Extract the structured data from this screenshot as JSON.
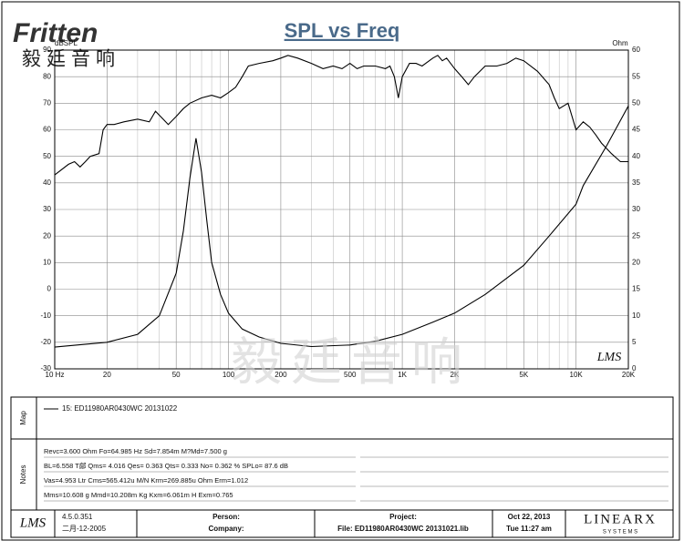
{
  "logo": {
    "brand": "Fritten",
    "chinese": "毅廷音响"
  },
  "watermark": "毅廷音响",
  "chart_data": {
    "type": "line",
    "title": "SPL vs Freq",
    "y_label": "dBSPL",
    "y2_label": "Ohm",
    "x_log": true,
    "grid": true,
    "corner_logo": "LMS",
    "xlim": [
      10,
      20000
    ],
    "xticks": [
      {
        "value": 10,
        "label": "10 Hz"
      },
      20,
      50,
      100,
      200,
      500,
      {
        "value": 1000,
        "label": "1K"
      },
      {
        "value": 2000,
        "label": "2K"
      },
      {
        "value": 5000,
        "label": "5K"
      },
      {
        "value": 10000,
        "label": "10K"
      },
      {
        "value": 20000,
        "label": "20K"
      }
    ],
    "xminor": [
      30,
      40,
      60,
      70,
      80,
      90,
      300,
      400,
      600,
      700,
      800,
      900,
      3000,
      4000,
      6000,
      7000,
      8000,
      9000
    ],
    "ylim": [
      -30,
      90
    ],
    "yticks": [
      -30,
      -20,
      -10,
      0,
      10,
      20,
      30,
      40,
      50,
      60,
      70,
      80,
      90
    ],
    "y2lim": [
      0,
      60
    ],
    "y2ticks": [
      0,
      5,
      10,
      15,
      20,
      25,
      30,
      35,
      40,
      45,
      50,
      55,
      60
    ],
    "series": [
      {
        "name": "15: ED11980AR0430WC  20131022",
        "color": "#000000",
        "x": [
          10,
          12,
          13,
          14,
          15,
          16,
          18,
          19,
          20,
          22,
          25,
          30,
          35,
          38,
          42,
          45,
          50,
          55,
          60,
          70,
          80,
          90,
          100,
          110,
          120,
          130,
          150,
          180,
          200,
          220,
          250,
          300,
          350,
          400,
          450,
          500,
          550,
          600,
          700,
          800,
          850,
          900,
          950,
          1000,
          1100,
          1200,
          1300,
          1500,
          1600,
          1700,
          1800,
          2000,
          2200,
          2400,
          2600,
          3000,
          3500,
          4000,
          4500,
          5000,
          6000,
          7000,
          7500,
          8000,
          9000,
          10000,
          11000,
          12000,
          13000,
          14000,
          16000,
          18000,
          20000
        ],
        "values": [
          43,
          47,
          48,
          46,
          48,
          50,
          51,
          60,
          62,
          62,
          63,
          64,
          63,
          67,
          64,
          62,
          65,
          68,
          70,
          72,
          73,
          72,
          74,
          76,
          80,
          84,
          85,
          86,
          87,
          88,
          87,
          85,
          83,
          84,
          83,
          85,
          83,
          84,
          84,
          83,
          84,
          80,
          72,
          80,
          85,
          85,
          84,
          87,
          88,
          86,
          87,
          83,
          80,
          77,
          80,
          84,
          84,
          85,
          87,
          86,
          82,
          77,
          72,
          68,
          70,
          60,
          63,
          61,
          58,
          55,
          51,
          48,
          48
        ]
      },
      {
        "axis": "y2",
        "color": "#000000",
        "x": [
          10,
          20,
          30,
          40,
          50,
          55,
          60,
          65,
          70,
          75,
          80,
          90,
          100,
          120,
          150,
          200,
          300,
          500,
          700,
          1000,
          1500,
          2000,
          3000,
          5000,
          7000,
          10000,
          11000,
          15000,
          20000
        ],
        "values": [
          4.1,
          5,
          6.5,
          10,
          18,
          26,
          36,
          43.4,
          37,
          28,
          20,
          14,
          10.5,
          7.5,
          6,
          4.8,
          4.2,
          4.5,
          5.2,
          6.5,
          8.8,
          10.5,
          14,
          19.5,
          25,
          31,
          34.5,
          42,
          49.5
        ]
      }
    ]
  },
  "panels": {
    "map_label": "Map",
    "notes_label": "Notes",
    "notes": [
      "Revc=3.600 Ohm  Fo=64.985 Hz  Sd=7.854m  M?Md=7.500 g",
      "BL=6.558 T鄃  Qms= 4.016  Qes= 0.363  Qts= 0.333  No= 0.362 %  SPLo= 87.6 dB",
      "Vas=4.953 Ltr  Cms=565.412u M/N  Krm=269.885u Ohm  Erm=1.012",
      "Mms=10.608 g  Mmd=10.208m Kg  Kxm=6.061m H  Exm=0.765"
    ]
  },
  "footer": {
    "logo": "LMS",
    "version": "4.5.0.351",
    "version_date": "二月-12-2005",
    "person": "Person:",
    "company": "Company:",
    "project": "Project:",
    "file": "File: ED11980AR0430WC  20131021.lib",
    "date": "Oct 22, 2013",
    "time": "Tue 11:27 am",
    "brand": "LINEARX",
    "brand_sub": "S Y S T E M S"
  }
}
